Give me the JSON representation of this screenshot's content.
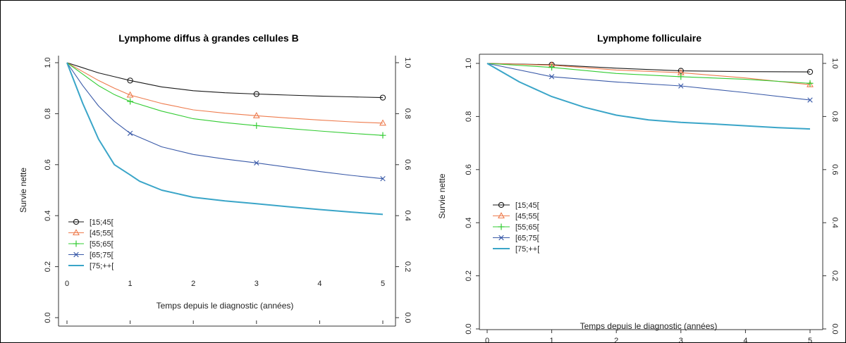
{
  "chart_data": [
    {
      "type": "line",
      "title": "Lymphome diffus à grandes cellules B",
      "xlabel": "Temps depuis le diagnostic (années)",
      "ylabel": "Survie nette",
      "xlim": [
        0,
        5
      ],
      "ylim": [
        0,
        1
      ],
      "x_ticks": [
        "0",
        "1",
        "2",
        "3",
        "4",
        "5"
      ],
      "y_ticks": [
        "0.0",
        "0.2",
        "0.4",
        "0.6",
        "0.8",
        "1.0"
      ],
      "right_axis": true,
      "grid": false,
      "legend_position": "bottom-left",
      "series": [
        {
          "name": "[15;45[",
          "color": "#1a1a1a",
          "marker": "circle",
          "x": [
            0,
            0.25,
            0.5,
            0.75,
            1,
            1.5,
            2,
            2.5,
            3,
            3.5,
            4,
            4.5,
            5
          ],
          "y": [
            1.0,
            0.98,
            0.96,
            0.945,
            0.93,
            0.905,
            0.89,
            0.882,
            0.877,
            0.873,
            0.869,
            0.866,
            0.863
          ],
          "marker_x": [
            1,
            3,
            5
          ]
        },
        {
          "name": "[45;55[",
          "color": "#ee7c4e",
          "marker": "triangle",
          "x": [
            0,
            0.25,
            0.5,
            0.75,
            1,
            1.5,
            2,
            2.5,
            3,
            3.5,
            4,
            4.5,
            5
          ],
          "y": [
            1.0,
            0.965,
            0.93,
            0.9,
            0.873,
            0.84,
            0.815,
            0.802,
            0.792,
            0.783,
            0.775,
            0.768,
            0.763
          ],
          "marker_x": [
            1,
            3,
            5
          ]
        },
        {
          "name": "[55;65[",
          "color": "#33cc33",
          "marker": "plus",
          "x": [
            0,
            0.25,
            0.5,
            0.75,
            1,
            1.5,
            2,
            2.5,
            3,
            3.5,
            4,
            4.5,
            5
          ],
          "y": [
            1.0,
            0.955,
            0.91,
            0.875,
            0.848,
            0.81,
            0.78,
            0.765,
            0.753,
            0.742,
            0.732,
            0.723,
            0.715
          ],
          "marker_x": [
            1,
            3,
            5
          ]
        },
        {
          "name": "[65;75[",
          "color": "#3a5aa8",
          "marker": "cross",
          "x": [
            0,
            0.25,
            0.5,
            0.75,
            1,
            1.5,
            2,
            2.5,
            3,
            3.5,
            4,
            4.5,
            5
          ],
          "y": [
            1.0,
            0.91,
            0.83,
            0.77,
            0.723,
            0.67,
            0.64,
            0.622,
            0.607,
            0.59,
            0.573,
            0.558,
            0.545
          ],
          "marker_x": [
            1,
            3,
            5
          ]
        },
        {
          "name": "[75;++[",
          "color": "#3aa5c8",
          "marker": "none",
          "x": [
            0,
            0.25,
            0.5,
            0.75,
            1,
            1.15,
            1.5,
            2,
            2.5,
            3,
            3.5,
            4,
            4.5,
            5
          ],
          "y": [
            1.0,
            0.84,
            0.7,
            0.6,
            0.56,
            0.535,
            0.5,
            0.472,
            0.458,
            0.447,
            0.435,
            0.424,
            0.414,
            0.405
          ],
          "marker_x": []
        }
      ]
    },
    {
      "type": "line",
      "title": "Lymphome folliculaire",
      "xlabel": "Temps depuis le diagnostic (années)",
      "ylabel": "Survie nette",
      "xlim": [
        0,
        5
      ],
      "ylim": [
        0,
        1
      ],
      "x_ticks": [
        "0",
        "1",
        "2",
        "3",
        "4",
        "5"
      ],
      "y_ticks": [
        "0.0",
        "0.2",
        "0.4",
        "0.6",
        "0.8",
        "1.0"
      ],
      "right_axis": true,
      "grid": false,
      "legend_position": "bottom-left",
      "series": [
        {
          "name": "[15;45[",
          "color": "#1a1a1a",
          "marker": "circle",
          "x": [
            0,
            1,
            2,
            3,
            4,
            5
          ],
          "y": [
            1.0,
            0.995,
            0.982,
            0.972,
            0.969,
            0.968
          ],
          "marker_x": [
            1,
            3,
            5
          ]
        },
        {
          "name": "[45;55[",
          "color": "#ee7c4e",
          "marker": "triangle",
          "x": [
            0,
            1,
            2,
            3,
            4,
            5
          ],
          "y": [
            1.0,
            0.993,
            0.975,
            0.965,
            0.945,
            0.92
          ],
          "marker_x": [
            1,
            3,
            5
          ]
        },
        {
          "name": "[55;65[",
          "color": "#33cc33",
          "marker": "plus",
          "x": [
            0,
            1,
            2,
            3,
            4,
            5
          ],
          "y": [
            1.0,
            0.985,
            0.962,
            0.95,
            0.94,
            0.925
          ],
          "marker_x": [
            1,
            3,
            5
          ]
        },
        {
          "name": "[65;75[",
          "color": "#3a5aa8",
          "marker": "cross",
          "x": [
            0,
            1,
            2,
            3,
            4,
            5
          ],
          "y": [
            1.0,
            0.95,
            0.93,
            0.915,
            0.89,
            0.862
          ],
          "marker_x": [
            1,
            3,
            5
          ]
        },
        {
          "name": "[75;++[",
          "color": "#3aa5c8",
          "marker": "none",
          "x": [
            0,
            0.5,
            1,
            1.5,
            2,
            2.5,
            3,
            3.5,
            4,
            4.5,
            5
          ],
          "y": [
            1.0,
            0.93,
            0.875,
            0.835,
            0.805,
            0.787,
            0.778,
            0.772,
            0.765,
            0.758,
            0.753
          ],
          "marker_x": []
        }
      ]
    }
  ]
}
